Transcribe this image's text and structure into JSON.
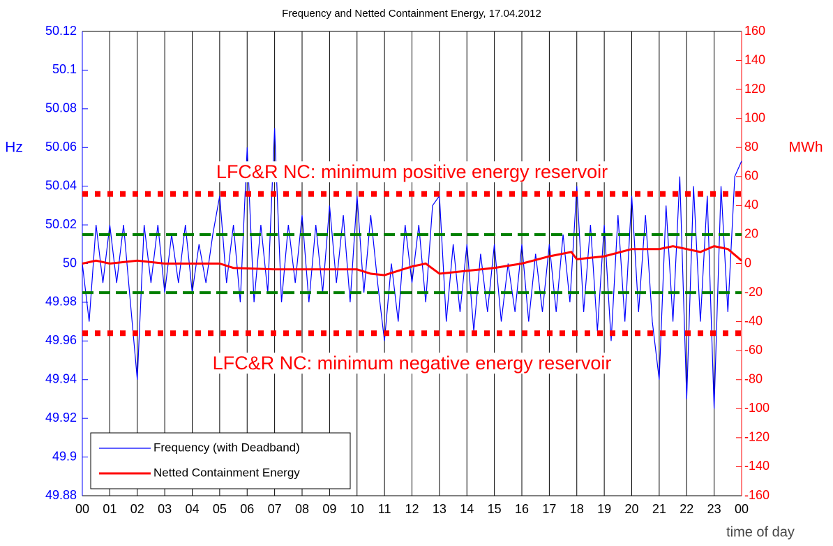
{
  "chart_data": {
    "type": "line",
    "title": "Frequency and Netted Containment Energy, 17.04.2012",
    "xlabel": "time of day",
    "ylabel": "Hz",
    "y2label": "MWh",
    "xlim": [
      0,
      24
    ],
    "xticks": [
      {
        "value": 0,
        "label": "00"
      },
      {
        "value": 1,
        "label": "01"
      },
      {
        "value": 2,
        "label": "02"
      },
      {
        "value": 3,
        "label": "03"
      },
      {
        "value": 4,
        "label": "04"
      },
      {
        "value": 5,
        "label": "05"
      },
      {
        "value": 6,
        "label": "06"
      },
      {
        "value": 7,
        "label": "07"
      },
      {
        "value": 8,
        "label": "08"
      },
      {
        "value": 9,
        "label": "09"
      },
      {
        "value": 10,
        "label": "10"
      },
      {
        "value": 11,
        "label": "11"
      },
      {
        "value": 12,
        "label": "12"
      },
      {
        "value": 13,
        "label": "13"
      },
      {
        "value": 14,
        "label": "14"
      },
      {
        "value": 15,
        "label": "15"
      },
      {
        "value": 16,
        "label": "16"
      },
      {
        "value": 17,
        "label": "17"
      },
      {
        "value": 18,
        "label": "18"
      },
      {
        "value": 19,
        "label": "19"
      },
      {
        "value": 20,
        "label": "20"
      },
      {
        "value": 21,
        "label": "21"
      },
      {
        "value": 22,
        "label": "22"
      },
      {
        "value": 23,
        "label": "23"
      },
      {
        "value": 24,
        "label": "00"
      }
    ],
    "ylim": [
      49.88,
      50.12
    ],
    "yticks": [
      49.88,
      49.9,
      49.92,
      49.94,
      49.96,
      49.98,
      50,
      50.02,
      50.04,
      50.06,
      50.08,
      50.1,
      50.12
    ],
    "y2lim": [
      -160,
      160
    ],
    "y2ticks": [
      -160,
      -140,
      -120,
      -100,
      -80,
      -60,
      -40,
      -20,
      0,
      20,
      40,
      60,
      80,
      100,
      120,
      140,
      160
    ],
    "grid": "x",
    "legend": "lower left",
    "series": [
      {
        "name": "Frequency (with Deadband)",
        "color": "#0000ff",
        "axis": "y",
        "x": [
          0,
          0.25,
          0.5,
          0.75,
          1,
          1.25,
          1.5,
          1.75,
          2,
          2.25,
          2.5,
          2.75,
          3,
          3.25,
          3.5,
          3.75,
          4,
          4.25,
          4.5,
          4.75,
          5,
          5.25,
          5.5,
          5.75,
          6,
          6.25,
          6.5,
          6.75,
          7,
          7.25,
          7.5,
          7.75,
          8,
          8.25,
          8.5,
          8.75,
          9,
          9.25,
          9.5,
          9.75,
          10,
          10.25,
          10.5,
          10.75,
          11,
          11.25,
          11.5,
          11.75,
          12,
          12.25,
          12.5,
          12.75,
          13,
          13.25,
          13.5,
          13.75,
          14,
          14.25,
          14.5,
          14.75,
          15,
          15.25,
          15.5,
          15.75,
          16,
          16.25,
          16.5,
          16.75,
          17,
          17.25,
          17.5,
          17.75,
          18,
          18.25,
          18.5,
          18.75,
          19,
          19.25,
          19.5,
          19.75,
          20,
          20.25,
          20.5,
          20.75,
          21,
          21.25,
          21.5,
          21.75,
          22,
          22.25,
          22.5,
          22.75,
          23,
          23.25,
          23.5,
          23.75,
          24
        ],
        "values": [
          50.0,
          49.97,
          50.02,
          49.99,
          50.02,
          49.99,
          50.02,
          49.98,
          49.94,
          50.02,
          49.99,
          50.02,
          49.985,
          50.015,
          49.99,
          50.02,
          49.985,
          50.01,
          49.99,
          50.015,
          50.035,
          49.99,
          50.02,
          49.98,
          50.06,
          49.98,
          50.02,
          49.985,
          50.07,
          49.98,
          50.02,
          49.99,
          50.025,
          49.98,
          50.02,
          49.985,
          50.03,
          49.99,
          50.025,
          49.98,
          50.035,
          49.985,
          50.025,
          49.99,
          49.96,
          50.0,
          49.97,
          50.02,
          49.99,
          50.02,
          49.98,
          50.03,
          50.035,
          49.97,
          50.01,
          49.975,
          50.01,
          49.965,
          50.005,
          49.975,
          50.01,
          49.97,
          50.0,
          49.975,
          50.01,
          49.97,
          50.005,
          49.975,
          50.01,
          49.975,
          50.015,
          49.98,
          50.04,
          49.975,
          50.02,
          49.965,
          50.02,
          49.96,
          50.025,
          49.97,
          50.035,
          49.975,
          50.025,
          49.97,
          49.94,
          50.03,
          49.97,
          50.045,
          49.93,
          50.04,
          49.97,
          50.035,
          49.925,
          50.04,
          49.975,
          50.045,
          50.053
        ]
      },
      {
        "name": "Netted Containment Energy",
        "color": "#ff0000",
        "axis": "y2",
        "x": [
          0,
          0.5,
          1,
          2,
          3,
          4,
          5,
          5.5,
          7,
          8,
          10,
          10.5,
          11,
          12,
          12.5,
          13,
          14,
          15,
          16,
          17,
          17.8,
          18,
          19,
          20,
          21,
          21.5,
          22,
          22.5,
          23,
          23.5,
          24
        ],
        "values": [
          0,
          2,
          0,
          2,
          0,
          0,
          0,
          -3,
          -4,
          -4,
          -4,
          -7,
          -8,
          -2,
          0,
          -7,
          -5,
          -3,
          0,
          5,
          8,
          3,
          5,
          10,
          10,
          12,
          10,
          8,
          12,
          10,
          2
        ]
      }
    ],
    "reference_lines": [
      {
        "value": 48,
        "axis": "y2",
        "color": "#ff0000",
        "style": "dotted"
      },
      {
        "value": -48,
        "axis": "y2",
        "color": "#ff0000",
        "style": "dotted"
      },
      {
        "value": 50.015,
        "axis": "y",
        "color": "#008000",
        "style": "dashed"
      },
      {
        "value": 49.985,
        "axis": "y",
        "color": "#008000",
        "style": "dashed"
      }
    ],
    "annotations": [
      "LFC&R NC: minimum positive energy reservoir",
      "LFC&R NC: minimum negative energy reservoir"
    ]
  }
}
